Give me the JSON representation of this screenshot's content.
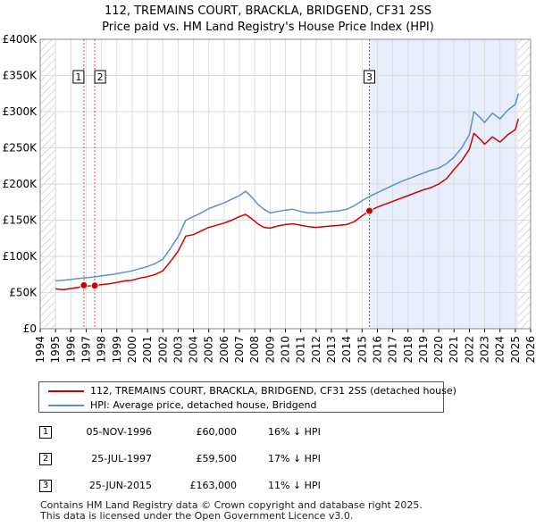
{
  "chart_data": {
    "type": "line",
    "title": "112, TREMAINS COURT, BRACKLA, BRIDGEND, CF31 2SS",
    "subtitle": "Price paid vs. HM Land Registry's House Price Index (HPI)",
    "xlabel": "",
    "ylabel": "",
    "xlim": [
      1994,
      2026
    ],
    "ylim": [
      0,
      400000
    ],
    "grid": true,
    "legend_position": "below",
    "y_ticks": [
      {
        "value": 0,
        "label": "£0"
      },
      {
        "value": 50000,
        "label": "£50K"
      },
      {
        "value": 100000,
        "label": "£100K"
      },
      {
        "value": 150000,
        "label": "£150K"
      },
      {
        "value": 200000,
        "label": "£200K"
      },
      {
        "value": 250000,
        "label": "£250K"
      },
      {
        "value": 300000,
        "label": "£300K"
      },
      {
        "value": 350000,
        "label": "£350K"
      },
      {
        "value": 400000,
        "label": "£400K"
      }
    ],
    "x_ticks": [
      "1994",
      "1995",
      "1996",
      "1997",
      "1998",
      "1999",
      "2000",
      "2001",
      "2002",
      "2003",
      "2004",
      "2005",
      "2006",
      "2007",
      "2008",
      "2009",
      "2010",
      "2011",
      "2012",
      "2013",
      "2014",
      "2015",
      "2016",
      "2017",
      "2018",
      "2019",
      "2020",
      "2021",
      "2022",
      "2023",
      "2024",
      "2025",
      "2026"
    ],
    "shaded_ranges": [
      {
        "name": "hatched-before-data",
        "from": 1994,
        "to": 1995
      },
      {
        "name": "sale-3-onwards",
        "from": 2015.48,
        "to": 2025.2
      },
      {
        "name": "hatched-after-data",
        "from": 2025.2,
        "to": 2026
      }
    ],
    "series": [
      {
        "name": "112, TREMAINS COURT, BRACKLA, BRIDGEND, CF31 2SS (detached house)",
        "color": "#cc0000",
        "x": [
          1995.0,
          1995.5,
          1996.0,
          1996.5,
          1996.85,
          1997.0,
          1997.56,
          1998.0,
          1998.5,
          1999.0,
          1999.5,
          2000.0,
          2000.5,
          2001.0,
          2001.5,
          2002.0,
          2002.5,
          2003.0,
          2003.5,
          2004.0,
          2004.5,
          2005.0,
          2005.5,
          2006.0,
          2006.5,
          2007.0,
          2007.4,
          2007.8,
          2008.2,
          2008.6,
          2009.0,
          2009.5,
          2010.0,
          2010.5,
          2011.0,
          2011.5,
          2012.0,
          2012.5,
          2013.0,
          2013.5,
          2014.0,
          2014.5,
          2015.0,
          2015.48,
          2016.0,
          2016.5,
          2017.0,
          2017.5,
          2018.0,
          2018.5,
          2019.0,
          2019.5,
          2020.0,
          2020.5,
          2021.0,
          2021.5,
          2022.0,
          2022.3,
          2022.7,
          2023.0,
          2023.5,
          2024.0,
          2024.5,
          2025.0,
          2025.2
        ],
        "y": [
          55000,
          54000,
          55500,
          57000,
          60000,
          59000,
          59500,
          61000,
          62000,
          64000,
          66000,
          67000,
          70000,
          72000,
          75000,
          80000,
          93000,
          107000,
          128000,
          130000,
          135000,
          140000,
          143000,
          146000,
          150000,
          155000,
          158000,
          152000,
          145000,
          140000,
          139000,
          142000,
          144000,
          145000,
          143000,
          141000,
          140000,
          141000,
          142000,
          143000,
          144000,
          148000,
          156000,
          163000,
          168000,
          172000,
          176000,
          180000,
          184000,
          188000,
          192000,
          195000,
          200000,
          207000,
          220000,
          232000,
          248000,
          270000,
          262000,
          255000,
          265000,
          258000,
          268000,
          275000,
          290000
        ]
      },
      {
        "name": "HPI: Average price, detached house, Bridgend",
        "color": "#5b8fd0",
        "x": [
          1995.0,
          1995.5,
          1996.0,
          1996.5,
          1997.0,
          1997.5,
          1998.0,
          1998.5,
          1999.0,
          1999.5,
          2000.0,
          2000.5,
          2001.0,
          2001.5,
          2002.0,
          2002.5,
          2003.0,
          2003.5,
          2004.0,
          2004.5,
          2005.0,
          2005.5,
          2006.0,
          2006.5,
          2007.0,
          2007.4,
          2007.8,
          2008.2,
          2008.6,
          2009.0,
          2009.5,
          2010.0,
          2010.5,
          2011.0,
          2011.5,
          2012.0,
          2012.5,
          2013.0,
          2013.5,
          2014.0,
          2014.5,
          2015.0,
          2015.5,
          2016.0,
          2016.5,
          2017.0,
          2017.5,
          2018.0,
          2018.5,
          2019.0,
          2019.5,
          2020.0,
          2020.5,
          2021.0,
          2021.5,
          2022.0,
          2022.3,
          2022.7,
          2023.0,
          2023.5,
          2024.0,
          2024.5,
          2025.0,
          2025.2
        ],
        "y": [
          66000,
          67000,
          68000,
          69500,
          70500,
          71500,
          73000,
          74500,
          76000,
          78000,
          80000,
          83000,
          86000,
          90000,
          96000,
          111000,
          127000,
          150000,
          155000,
          160000,
          166000,
          170000,
          174000,
          179000,
          184000,
          190000,
          182000,
          172000,
          165000,
          160000,
          162000,
          164000,
          165000,
          162000,
          160000,
          160000,
          161000,
          162000,
          163000,
          165000,
          170000,
          177000,
          183000,
          188000,
          193000,
          198000,
          203000,
          207000,
          211000,
          215000,
          219000,
          222000,
          228000,
          237000,
          250000,
          268000,
          300000,
          292000,
          285000,
          298000,
          290000,
          302000,
          310000,
          325000
        ]
      }
    ],
    "sales": [
      {
        "id": "1",
        "x": 1996.85,
        "date": "05-NOV-1996",
        "price_value": 60000,
        "price": "£60,000",
        "hpi": "16% ↓ HPI"
      },
      {
        "id": "2",
        "x": 1997.56,
        "date": "25-JUL-1997",
        "price_value": 59500,
        "price": "£59,500",
        "hpi": "17% ↓ HPI"
      },
      {
        "id": "3",
        "x": 2015.48,
        "date": "25-JUN-2015",
        "price_value": 163000,
        "price": "£163,000",
        "hpi": "11% ↓ HPI"
      }
    ]
  },
  "legend": {
    "items": [
      {
        "label": "112, TREMAINS COURT, BRACKLA, BRIDGEND, CF31 2SS (detached house)",
        "color": "#cc0000"
      },
      {
        "label": "HPI: Average price, detached house, Bridgend",
        "color": "#5b8fd0"
      }
    ]
  },
  "colors": {
    "price_line": "#cc0000",
    "hpi_line": "#5b8fd0",
    "shade": "#e8eefb",
    "grid": "#dddddd",
    "sale_marker": "#cc0000",
    "vline": "#e04040"
  },
  "footer": {
    "line1": "Contains HM Land Registry data © Crown copyright and database right 2025.",
    "line2": "This data is licensed under the Open Government Licence v3.0."
  }
}
